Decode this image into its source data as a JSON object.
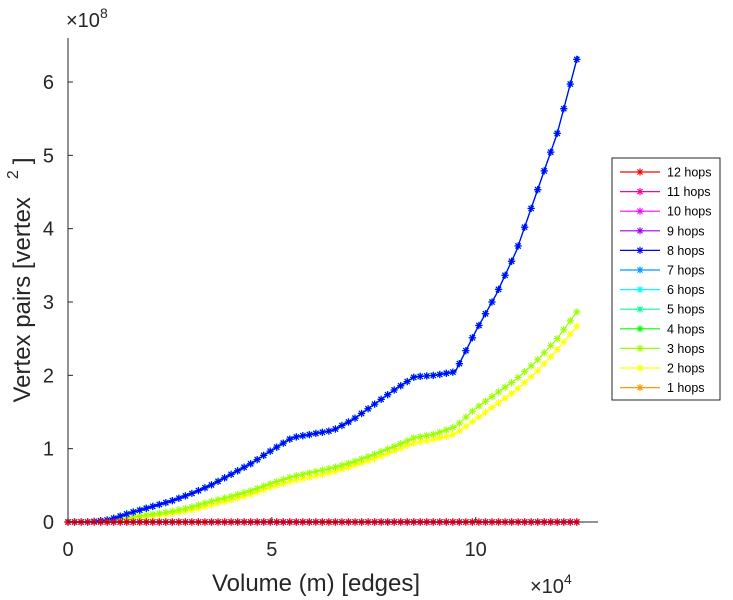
{
  "chart_data": {
    "type": "line",
    "title": "",
    "xlabel": "Volume (m) [edges]",
    "ylabel": "Vertex pairs [vertex",
    "ylabel_superscript": "2",
    "ylabel_close": "]",
    "x_multiplier": {
      "base": "×10",
      "exponent": "4"
    },
    "y_multiplier": {
      "base": "×10",
      "exponent": "8"
    },
    "x_scale_factor": 10000,
    "y_scale_factor": 100000000,
    "xlim": [
      0,
      130000
    ],
    "ylim": [
      0,
      660000000
    ],
    "x_ticks": [
      0,
      5,
      10
    ],
    "y_ticks": [
      0,
      1,
      2,
      3,
      4,
      5,
      6
    ],
    "grid": false,
    "legend_position": "right",
    "colors": {
      "12 hops": "#ff0000",
      "11 hops": "#ff0099",
      "10 hops": "#ff00ff",
      "9 hops": "#9900ff",
      "8 hops": "#0000ff",
      "7 hops": "#0099ff",
      "6 hops": "#00ffff",
      "5 hops": "#00ff99",
      "4 hops": "#00ff00",
      "3 hops": "#99ff00",
      "2 hops": "#ffff00",
      "1 hops": "#ff9900"
    },
    "series": [
      {
        "name": "12 hops",
        "color": "#ff0000",
        "x": [
          0,
          125000
        ],
        "y": [
          0,
          0
        ]
      },
      {
        "name": "11 hops",
        "color": "#ff0099",
        "x": [
          0,
          125000
        ],
        "y": [
          0,
          0
        ]
      },
      {
        "name": "10 hops",
        "color": "#ff00ff",
        "x": [
          0,
          125000
        ],
        "y": [
          0,
          0
        ]
      },
      {
        "name": "9 hops",
        "color": "#9900ff",
        "x": [
          0,
          125000
        ],
        "y": [
          0,
          0
        ]
      },
      {
        "name": "8 hops",
        "color": "#0000ff",
        "x": [
          0,
          5000,
          10000,
          15000,
          20000,
          25000,
          30000,
          35000,
          40000,
          45000,
          50000,
          55000,
          60000,
          65000,
          70000,
          75000,
          80000,
          85000,
          90000,
          95000,
          100000,
          105000,
          110000,
          115000,
          120000,
          125000
        ],
        "y": [
          0,
          0,
          3000000,
          12000000,
          20000000,
          28000000,
          38000000,
          50000000,
          65000000,
          80000000,
          98000000,
          115000000,
          120000000,
          125000000,
          140000000,
          160000000,
          180000000,
          198000000,
          200000000,
          205000000,
          260000000,
          310000000,
          370000000,
          450000000,
          530000000,
          635000000
        ]
      },
      {
        "name": "7 hops",
        "color": "#0099ff",
        "x": [
          0,
          5000,
          10000,
          15000,
          20000,
          25000,
          30000,
          35000,
          40000,
          45000,
          50000,
          55000,
          60000,
          65000,
          70000,
          75000,
          80000,
          85000,
          90000,
          95000,
          100000,
          105000,
          110000,
          115000,
          120000,
          125000
        ],
        "y": [
          0,
          0,
          3000000,
          12000000,
          20000000,
          28000000,
          38000000,
          50000000,
          65000000,
          80000000,
          98000000,
          115000000,
          120000000,
          125000000,
          140000000,
          160000000,
          180000000,
          198000000,
          200000000,
          205000000,
          260000000,
          310000000,
          370000000,
          450000000,
          530000000,
          635000000
        ]
      },
      {
        "name": "6 hops",
        "color": "#00ffff",
        "x": [
          0,
          5000,
          10000,
          15000,
          20000,
          25000,
          30000,
          35000,
          40000,
          45000,
          50000,
          55000,
          60000,
          65000,
          70000,
          75000,
          80000,
          85000,
          90000,
          95000,
          100000,
          105000,
          110000,
          115000,
          120000,
          125000
        ],
        "y": [
          0,
          0,
          3000000,
          12000000,
          20000000,
          28000000,
          38000000,
          50000000,
          65000000,
          80000000,
          98000000,
          115000000,
          120000000,
          125000000,
          140000000,
          160000000,
          180000000,
          198000000,
          200000000,
          205000000,
          260000000,
          310000000,
          370000000,
          450000000,
          530000000,
          635000000
        ]
      },
      {
        "name": "5 hops",
        "color": "#00ff99",
        "x": [
          0,
          5000,
          10000,
          15000,
          20000,
          25000,
          30000,
          35000,
          40000,
          45000,
          50000,
          55000,
          60000,
          65000,
          70000,
          75000,
          80000,
          85000,
          90000,
          95000,
          100000,
          105000,
          110000,
          115000,
          120000,
          125000
        ],
        "y": [
          0,
          0,
          3000000,
          12000000,
          20000000,
          28000000,
          38000000,
          50000000,
          65000000,
          80000000,
          98000000,
          115000000,
          120000000,
          125000000,
          140000000,
          160000000,
          180000000,
          198000000,
          200000000,
          205000000,
          260000000,
          310000000,
          370000000,
          450000000,
          530000000,
          635000000
        ]
      },
      {
        "name": "4 hops",
        "color": "#00ff00",
        "x": [
          0,
          5000,
          10000,
          15000,
          20000,
          25000,
          30000,
          35000,
          40000,
          45000,
          50000,
          55000,
          60000,
          65000,
          70000,
          75000,
          80000,
          85000,
          90000,
          95000,
          100000,
          105000,
          110000,
          115000,
          120000,
          125000
        ],
        "y": [
          0,
          0,
          3000000,
          12000000,
          20000000,
          28000000,
          38000000,
          50000000,
          65000000,
          80000000,
          98000000,
          115000000,
          120000000,
          125000000,
          140000000,
          160000000,
          180000000,
          198000000,
          200000000,
          205000000,
          260000000,
          310000000,
          370000000,
          450000000,
          530000000,
          635000000
        ]
      },
      {
        "name": "3 hops",
        "color": "#99ff00",
        "x": [
          0,
          5000,
          10000,
          15000,
          20000,
          25000,
          30000,
          35000,
          40000,
          45000,
          50000,
          55000,
          60000,
          65000,
          70000,
          75000,
          80000,
          85000,
          90000,
          95000,
          100000,
          105000,
          110000,
          115000,
          120000,
          125000
        ],
        "y": [
          0,
          0,
          2000000,
          6000000,
          10000000,
          14000000,
          20000000,
          28000000,
          35000000,
          43000000,
          53000000,
          62000000,
          68000000,
          74000000,
          82000000,
          92000000,
          103000000,
          115000000,
          120000000,
          130000000,
          155000000,
          175000000,
          195000000,
          220000000,
          250000000,
          288000000
        ]
      },
      {
        "name": "2 hops",
        "color": "#ffff00",
        "x": [
          0,
          5000,
          10000,
          15000,
          20000,
          25000,
          30000,
          35000,
          40000,
          45000,
          50000,
          55000,
          60000,
          65000,
          70000,
          75000,
          80000,
          85000,
          90000,
          95000,
          100000,
          105000,
          110000,
          115000,
          120000,
          125000
        ],
        "y": [
          0,
          0,
          1500000,
          5000000,
          8000000,
          11000000,
          16000000,
          23000000,
          30000000,
          38000000,
          48000000,
          56000000,
          62000000,
          68000000,
          77000000,
          86000000,
          97000000,
          108000000,
          113000000,
          120000000,
          140000000,
          160000000,
          180000000,
          205000000,
          235000000,
          268000000
        ]
      },
      {
        "name": "1 hops",
        "color": "#ff9900",
        "x": [
          0,
          125000
        ],
        "y": [
          0,
          0
        ]
      }
    ]
  }
}
